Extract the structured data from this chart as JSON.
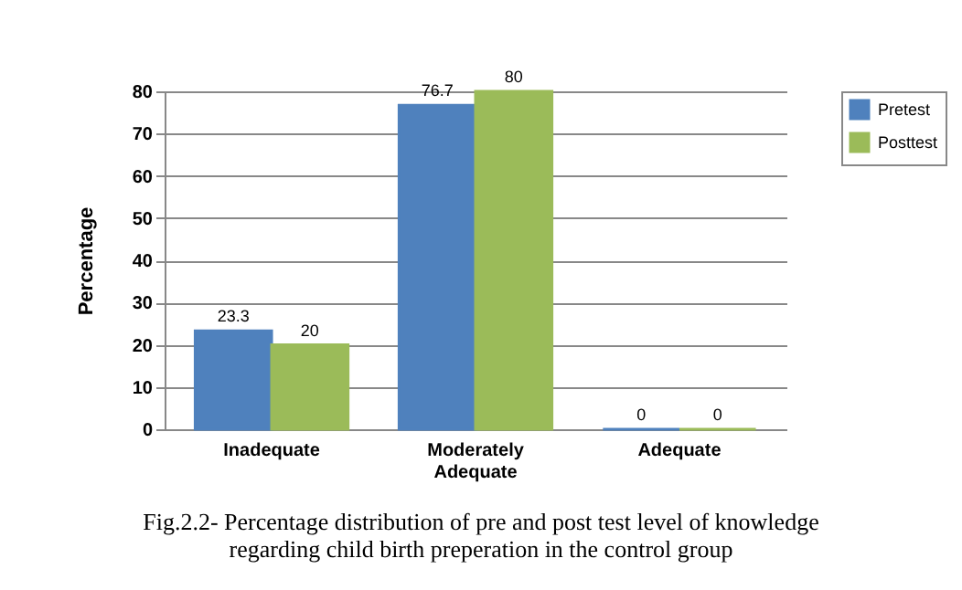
{
  "chart_data": {
    "type": "bar",
    "ylabel": "Percentage",
    "categories": [
      "Inadequate",
      "Moderately Adequate",
      "Adequate"
    ],
    "series": [
      {
        "name": "Pretest",
        "color": "#4f81bd",
        "values": [
          23.3,
          76.7,
          0
        ]
      },
      {
        "name": "Posttest",
        "color": "#9bbb59",
        "values": [
          20,
          80,
          0
        ]
      }
    ],
    "ylim": [
      0,
      80
    ],
    "yticks": [
      0,
      10,
      20,
      30,
      40,
      50,
      60,
      70,
      80
    ],
    "grid": "y",
    "legend": "right",
    "data_labels": true,
    "annotations": [
      "Fig.2.2- Percentage distribution  of  pre and post test level of  knowledge regarding child birth preperation in the control group"
    ]
  }
}
